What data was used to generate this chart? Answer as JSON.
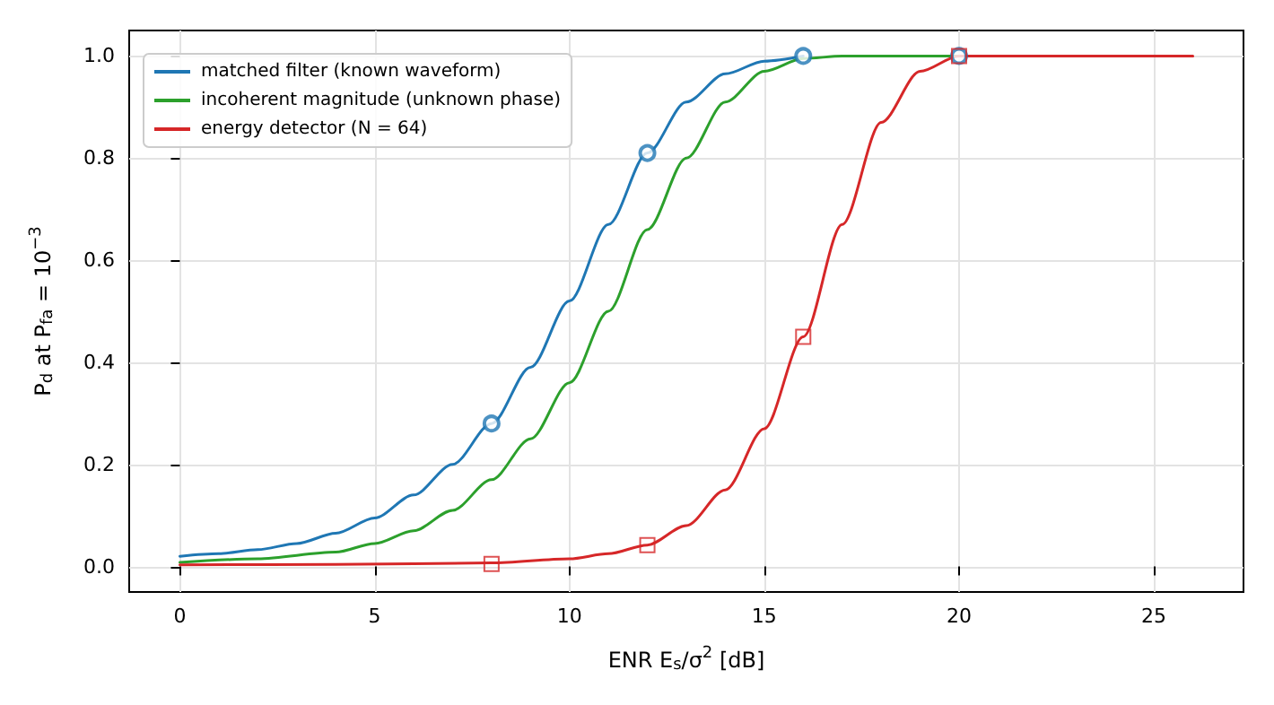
{
  "chart_data": {
    "type": "line",
    "xlabel": "ENR E$_{s}$/σ$^{2}$ [dB]",
    "ylabel": "P$_{d}$ at P$_{fa}$ = 10$^{−3}$",
    "xlim": [
      -1.3,
      27.3
    ],
    "ylim": [
      -0.05,
      1.05
    ],
    "xticks": [
      0,
      5,
      10,
      15,
      20,
      25
    ],
    "yticks": [
      {
        "value": 0,
        "label": "0.0"
      },
      {
        "value": 0.2,
        "label": "0.2"
      },
      {
        "value": 0.4,
        "label": "0.4"
      },
      {
        "value": 0.6,
        "label": "0.6"
      },
      {
        "value": 0.8,
        "label": "0.8"
      },
      {
        "value": 1,
        "label": "1.0"
      }
    ],
    "grid": true,
    "legend": "top left",
    "line_style": "solid",
    "series": [
      {
        "name": "matched filter (known waveform)",
        "color": "#1f77b4",
        "marker": "none",
        "x": [
          0,
          1,
          2,
          3,
          4,
          5,
          6,
          7,
          8,
          9,
          10,
          11,
          12,
          13,
          14,
          15,
          16
        ],
        "values": [
          0.02,
          0.025,
          0.033,
          0.045,
          0.065,
          0.095,
          0.14,
          0.2,
          0.28,
          0.39,
          0.52,
          0.67,
          0.81,
          0.91,
          0.965,
          0.99,
          1.0
        ]
      },
      {
        "name": "incoherent magnitude (unknown phase)",
        "color": "#2ca02c",
        "marker": "none",
        "x": [
          0,
          2,
          4,
          5,
          6,
          7,
          8,
          9,
          10,
          11,
          12,
          13,
          14,
          15,
          16,
          17,
          18,
          20
        ],
        "values": [
          0.008,
          0.015,
          0.028,
          0.045,
          0.07,
          0.11,
          0.17,
          0.25,
          0.36,
          0.5,
          0.66,
          0.8,
          0.91,
          0.97,
          0.995,
          1.0,
          1.0,
          1.0
        ]
      },
      {
        "name": "energy detector (N = 64)",
        "color": "#d62728",
        "marker": "none",
        "x": [
          0,
          4,
          8,
          10,
          11,
          12,
          13,
          14,
          15,
          16,
          17,
          18,
          19,
          20,
          21,
          22,
          24,
          26
        ],
        "values": [
          0.003,
          0.004,
          0.007,
          0.015,
          0.025,
          0.042,
          0.08,
          0.15,
          0.27,
          0.45,
          0.67,
          0.87,
          0.97,
          1.0,
          1.0,
          1.0,
          1.0,
          1.0
        ]
      },
      {
        "type": "scatter",
        "color": "#1f77b4",
        "marker": "circle",
        "x": [
          8,
          12,
          16,
          20
        ],
        "values": [
          0.28,
          0.81,
          1.0,
          1.0
        ]
      },
      {
        "type": "scatter",
        "color": "#d62728",
        "marker": "square",
        "x": [
          8,
          12,
          16,
          20
        ],
        "values": [
          0.005,
          0.042,
          0.45,
          1.0
        ]
      }
    ]
  }
}
